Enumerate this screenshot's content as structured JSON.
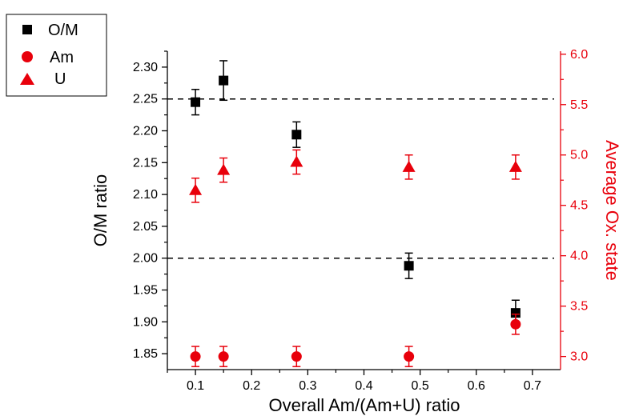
{
  "chart_data": {
    "type": "scatter",
    "xlabel": "Overall Am/(Am+U) ratio",
    "ylabel_left": "O/M ratio",
    "ylabel_right": "Average Ox. state",
    "xlim": [
      0.05,
      0.75
    ],
    "ylim_left": [
      1.825,
      2.325
    ],
    "ylim_right": [
      2.87,
      6.03
    ],
    "x_ticks": [
      "0.1",
      "0.2",
      "0.3",
      "0.4",
      "0.5",
      "0.6",
      "0.7"
    ],
    "y_left_ticks": [
      "1.85",
      "1.90",
      "1.95",
      "2.00",
      "2.05",
      "2.10",
      "2.15",
      "2.20",
      "2.25",
      "2.30"
    ],
    "y_right_ticks": [
      "3.0",
      "3.5",
      "4.0",
      "4.5",
      "5.0",
      "5.5",
      "6.0"
    ],
    "reference_lines_left": [
      2.25,
      2.0
    ],
    "grid": false,
    "legend_position": "top-left-outside",
    "colors": {
      "left_axis": "#000000",
      "right_axis": "#e8000b"
    },
    "series": [
      {
        "name": "O/M",
        "axis": "left",
        "marker": "square",
        "color": "#000000",
        "x": [
          0.1,
          0.15,
          0.28,
          0.48,
          0.67
        ],
        "y": [
          2.245,
          2.279,
          2.194,
          1.988,
          1.914
        ],
        "err": [
          0.02,
          0.031,
          0.02,
          0.02,
          0.02
        ]
      },
      {
        "name": "Am",
        "axis": "right",
        "marker": "circle",
        "color": "#e8000b",
        "x": [
          0.1,
          0.15,
          0.28,
          0.48,
          0.67
        ],
        "y": [
          3.0,
          3.0,
          3.0,
          3.0,
          3.32
        ],
        "err": [
          0.1,
          0.1,
          0.1,
          0.1,
          0.1
        ]
      },
      {
        "name": "U",
        "axis": "right",
        "marker": "triangle",
        "color": "#e8000b",
        "x": [
          0.1,
          0.15,
          0.28,
          0.48,
          0.67
        ],
        "y": [
          4.65,
          4.85,
          4.93,
          4.88,
          4.88
        ],
        "err": [
          0.12,
          0.12,
          0.12,
          0.12,
          0.12
        ]
      }
    ]
  }
}
